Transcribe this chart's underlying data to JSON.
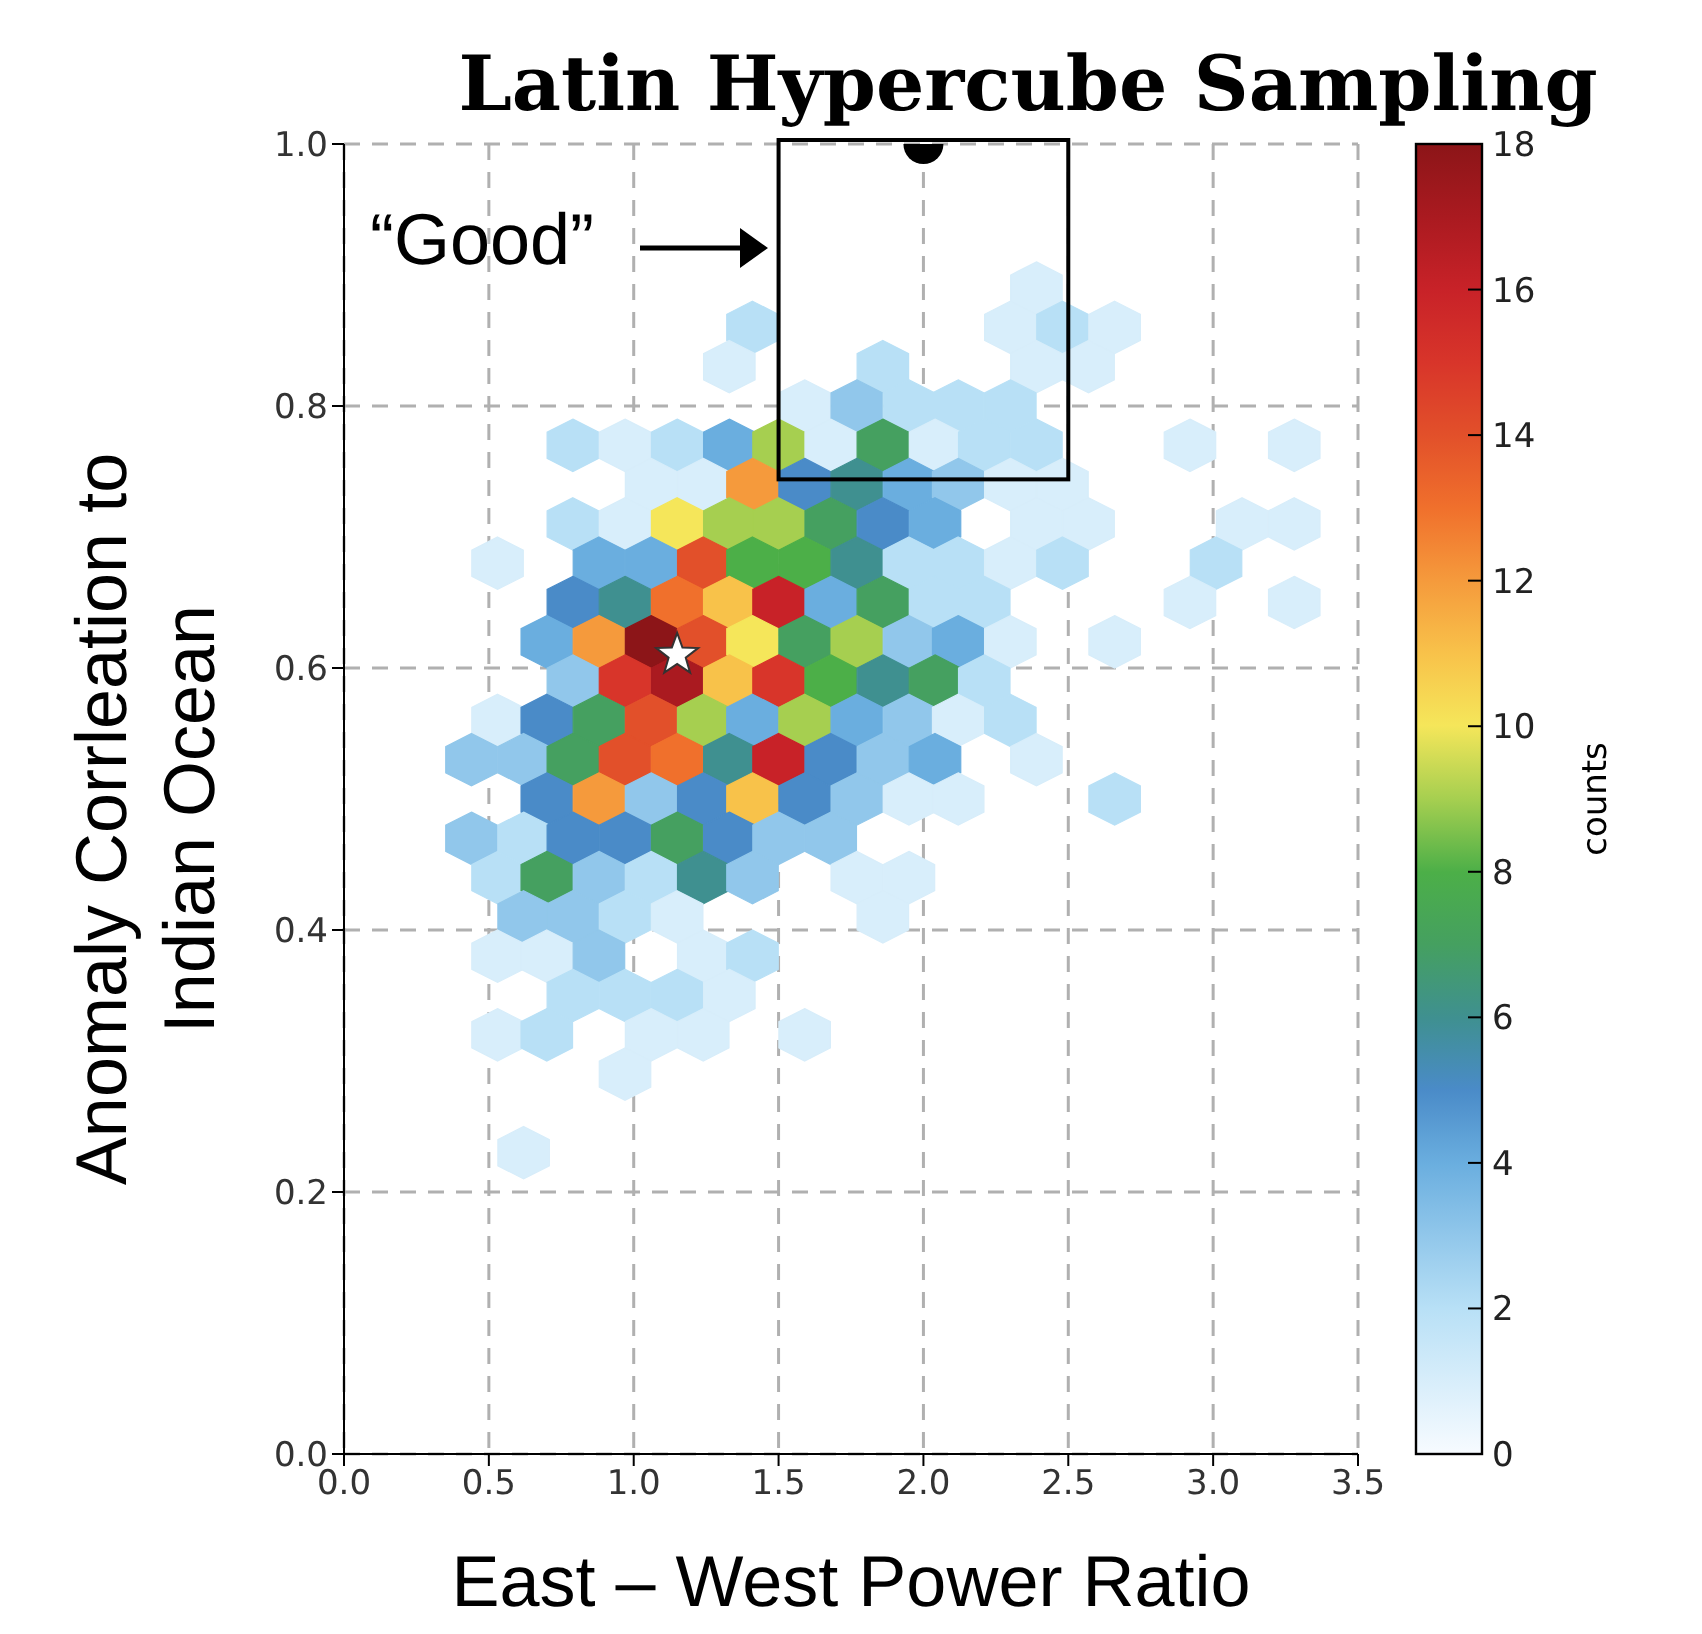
{
  "chart_data": {
    "type": "scatter",
    "title": "Latin Hypercube Sampling",
    "xlabel": "East – West Power Ratio",
    "ylabel": "Anomaly Corrleation to\nIndian Ocean",
    "clabel": "counts",
    "annotations": [
      "“Good”"
    ],
    "xlim": [
      0,
      3.5
    ],
    "xticks": [
      {
        "value": 0,
        "label": "0.0"
      },
      {
        "value": 0.5,
        "label": "0.5"
      },
      {
        "value": 1,
        "label": "1.0"
      },
      {
        "value": 1.5,
        "label": "1.5"
      },
      {
        "value": 2,
        "label": "2.0"
      },
      {
        "value": 2.5,
        "label": "2.5"
      },
      {
        "value": 3,
        "label": "3.0"
      },
      {
        "value": 3.5,
        "label": "3.5"
      }
    ],
    "ylim": [
      0,
      1
    ],
    "yticks": [
      {
        "value": 0,
        "label": "0.0"
      },
      {
        "value": 0.2,
        "label": "0.2"
      },
      {
        "value": 0.4,
        "label": "0.4"
      },
      {
        "value": 0.6,
        "label": "0.6"
      },
      {
        "value": 0.8,
        "label": "0.8"
      },
      {
        "value": 1,
        "label": "1.0"
      }
    ],
    "clim": [
      0,
      18
    ],
    "cticks": [
      0,
      2,
      4,
      6,
      8,
      10,
      12,
      14,
      16,
      18
    ],
    "grid": true,
    "series": [
      {
        "x": [
          2.39,
          1.41,
          2.3,
          2.48,
          2.66,
          1.33,
          1.86,
          2.39,
          2.57,
          1.59,
          1.77,
          1.95,
          2.12,
          2.3,
          0.79,
          0.97,
          1.15,
          1.33,
          1.5,
          1.68,
          1.86,
          2.04,
          2.21,
          2.39,
          2.92,
          3.28,
          1.06,
          1.24,
          1.41,
          1.59,
          1.77,
          1.95,
          2.12,
          2.3,
          2.48,
          0.79,
          0.97,
          1.15,
          1.33,
          1.5,
          1.68,
          1.86,
          2.04,
          2.39,
          2.57,
          3.1,
          3.28,
          0.53,
          0.88,
          1.06,
          1.24,
          1.41,
          1.59,
          1.77,
          1.95,
          2.12,
          2.3,
          2.48,
          3.01,
          0.79,
          0.97,
          1.15,
          1.33,
          1.5,
          1.68,
          1.86,
          2.04,
          2.21,
          2.92,
          3.28,
          0.7,
          0.88,
          1.06,
          1.24,
          1.41,
          1.59,
          1.77,
          1.95,
          2.12,
          2.3,
          2.66,
          0.79,
          0.97,
          1.15,
          1.33,
          1.5,
          1.68,
          1.86,
          2.04,
          2.21,
          0.53,
          0.7,
          0.88,
          1.06,
          1.24,
          1.41,
          1.59,
          1.77,
          1.95,
          2.12,
          2.3,
          0.44,
          0.62,
          0.79,
          0.97,
          1.15,
          1.33,
          1.5,
          1.68,
          1.86,
          2.04,
          2.39,
          0.7,
          0.88,
          1.06,
          1.24,
          1.41,
          1.59,
          1.77,
          1.95,
          2.12,
          2.66,
          0.44,
          0.62,
          0.79,
          0.97,
          1.15,
          1.33,
          1.5,
          1.68,
          0.53,
          0.7,
          0.88,
          1.06,
          1.24,
          1.41,
          1.77,
          1.95,
          0.62,
          0.79,
          0.97,
          1.15,
          1.86,
          0.53,
          0.7,
          0.88,
          1.24,
          1.41,
          0.79,
          0.97,
          1.15,
          1.33,
          0.53,
          0.7,
          1.06,
          1.24,
          1.59,
          0.97,
          0.62
        ],
        "values": [
          0.89,
          0.86,
          0.86,
          0.86,
          0.86,
          0.83,
          0.83,
          0.83,
          0.83,
          0.8,
          0.8,
          0.8,
          0.8,
          0.8,
          0.77,
          0.77,
          0.77,
          0.77,
          0.77,
          0.77,
          0.77,
          0.77,
          0.77,
          0.77,
          0.77,
          0.77,
          0.74,
          0.74,
          0.74,
          0.74,
          0.74,
          0.74,
          0.74,
          0.74,
          0.74,
          0.71,
          0.71,
          0.71,
          0.71,
          0.71,
          0.71,
          0.71,
          0.71,
          0.71,
          0.71,
          0.71,
          0.71,
          0.68,
          0.68,
          0.68,
          0.68,
          0.68,
          0.68,
          0.68,
          0.68,
          0.68,
          0.68,
          0.68,
          0.68,
          0.65,
          0.65,
          0.65,
          0.65,
          0.65,
          0.65,
          0.65,
          0.65,
          0.65,
          0.65,
          0.65,
          0.62,
          0.62,
          0.62,
          0.62,
          0.62,
          0.62,
          0.62,
          0.62,
          0.62,
          0.62,
          0.62,
          0.59,
          0.59,
          0.59,
          0.59,
          0.59,
          0.59,
          0.59,
          0.59,
          0.59,
          0.56,
          0.56,
          0.56,
          0.56,
          0.56,
          0.56,
          0.56,
          0.56,
          0.56,
          0.56,
          0.56,
          0.53,
          0.53,
          0.53,
          0.53,
          0.53,
          0.53,
          0.53,
          0.53,
          0.53,
          0.53,
          0.53,
          0.5,
          0.5,
          0.5,
          0.5,
          0.5,
          0.5,
          0.5,
          0.5,
          0.5,
          0.5,
          0.47,
          0.47,
          0.47,
          0.47,
          0.47,
          0.47,
          0.47,
          0.47,
          0.44,
          0.44,
          0.44,
          0.44,
          0.44,
          0.44,
          0.44,
          0.44,
          0.41,
          0.41,
          0.41,
          0.41,
          0.41,
          0.38,
          0.38,
          0.38,
          0.38,
          0.38,
          0.35,
          0.35,
          0.35,
          0.35,
          0.32,
          0.32,
          0.32,
          0.32,
          0.32,
          0.29,
          0.23
        ],
        "cvalues": [
          1,
          2,
          1,
          2,
          1,
          1,
          2,
          1,
          1,
          1,
          3,
          2,
          2,
          2,
          2,
          1,
          2,
          4,
          9,
          1,
          7,
          1,
          2,
          2,
          1,
          1,
          1,
          1,
          12,
          5,
          6,
          4,
          3,
          1,
          1,
          2,
          1,
          10,
          9,
          9,
          7,
          5,
          4,
          1,
          1,
          1,
          1,
          1,
          4,
          4,
          14,
          8,
          8,
          6,
          2,
          2,
          1,
          2,
          2,
          5,
          6,
          13,
          11,
          16,
          4,
          7,
          2,
          2,
          1,
          1,
          4,
          12,
          18,
          14,
          10,
          7,
          9,
          3,
          4,
          1,
          1,
          3,
          15,
          17,
          11,
          15,
          8,
          6,
          7,
          2,
          1,
          5,
          7,
          14,
          9,
          4,
          9,
          4,
          3,
          1,
          2,
          3,
          3,
          7,
          14,
          13,
          6,
          16,
          5,
          3,
          4,
          1,
          5,
          12,
          3,
          5,
          11,
          5,
          3,
          1,
          1,
          2,
          3,
          2,
          5,
          5,
          7,
          5,
          3,
          3,
          2,
          7,
          3,
          2,
          6,
          3,
          1,
          1,
          3,
          3,
          2,
          1,
          1,
          1,
          1,
          3,
          1,
          2,
          2,
          2,
          2,
          1,
          1,
          2,
          1,
          1,
          1,
          1,
          1
        ],
        "colors": [
          "#d8eefb",
          "#b8e0f6",
          "#d8eefb",
          "#b8e0f6",
          "#d8eefb",
          "#d8eefb",
          "#b8e0f6",
          "#d8eefb",
          "#d8eefb",
          "#d8eefb",
          "#91c7eb",
          "#b8e0f6",
          "#b8e0f6",
          "#b8e0f6",
          "#b8e0f6",
          "#d8eefb",
          "#b8e0f6",
          "#6aaedf",
          "#a6cf50",
          "#d8eefb",
          "#45a060",
          "#d8eefb",
          "#b8e0f6",
          "#b8e0f6",
          "#d8eefb",
          "#d8eefb",
          "#d8eefb",
          "#d8eefb",
          "#f59a3c",
          "#4a8bc8",
          "#3f9090",
          "#6aaedf",
          "#91c7eb",
          "#d8eefb",
          "#d8eefb",
          "#b8e0f6",
          "#d8eefb",
          "#f5e65a",
          "#a6cf50",
          "#a6cf50",
          "#45a060",
          "#4a8bc8",
          "#6aaedf",
          "#d8eefb",
          "#d8eefb",
          "#d8eefb",
          "#d8eefb",
          "#d8eefb",
          "#6aaedf",
          "#6aaedf",
          "#e2502a",
          "#4caf48",
          "#4caf48",
          "#3f9090",
          "#b8e0f6",
          "#b8e0f6",
          "#d8eefb",
          "#b8e0f6",
          "#b8e0f6",
          "#4a8bc8",
          "#3f9090",
          "#f0702c",
          "#f8c24a",
          "#c82228",
          "#6aaedf",
          "#45a060",
          "#b8e0f6",
          "#b8e0f6",
          "#d8eefb",
          "#d8eefb",
          "#6aaedf",
          "#f59a3c",
          "#8c1518",
          "#e2502a",
          "#f5e65a",
          "#45a060",
          "#a6cf50",
          "#91c7eb",
          "#6aaedf",
          "#d8eefb",
          "#d8eefb",
          "#91c7eb",
          "#d8352a",
          "#aa1a20",
          "#f8c24a",
          "#d8352a",
          "#4caf48",
          "#3f9090",
          "#45a060",
          "#b8e0f6",
          "#d8eefb",
          "#4a8bc8",
          "#45a060",
          "#e2502a",
          "#a6cf50",
          "#6aaedf",
          "#a6cf50",
          "#6aaedf",
          "#91c7eb",
          "#d8eefb",
          "#b8e0f6",
          "#91c7eb",
          "#91c7eb",
          "#45a060",
          "#e2502a",
          "#f0702c",
          "#3f9090",
          "#c82228",
          "#4a8bc8",
          "#91c7eb",
          "#6aaedf",
          "#d8eefb",
          "#4a8bc8",
          "#f59a3c",
          "#91c7eb",
          "#4a8bc8",
          "#f8c24a",
          "#4a8bc8",
          "#91c7eb",
          "#d8eefb",
          "#d8eefb",
          "#b8e0f6",
          "#91c7eb",
          "#b8e0f6",
          "#4a8bc8",
          "#4a8bc8",
          "#45a060",
          "#4a8bc8",
          "#91c7eb",
          "#91c7eb",
          "#b8e0f6",
          "#45a060",
          "#91c7eb",
          "#b8e0f6",
          "#3f9090",
          "#91c7eb",
          "#d8eefb",
          "#d8eefb",
          "#91c7eb",
          "#91c7eb",
          "#b8e0f6",
          "#d8eefb",
          "#d8eefb",
          "#d8eefb",
          "#d8eefb",
          "#91c7eb",
          "#d8eefb",
          "#b8e0f6",
          "#b8e0f6",
          "#b8e0f6",
          "#b8e0f6",
          "#d8eefb",
          "#d8eefb",
          "#b8e0f6",
          "#d8eefb",
          "#d8eefb",
          "#d8eefb",
          "#d8eefb",
          "#d8eefb"
        ]
      },
      {
        "marker": "star",
        "color": "#ffffff",
        "x": [
          1.15
        ],
        "values": [
          0.61
        ]
      },
      {
        "marker": "circle",
        "color": "#000000",
        "x": [
          2.0
        ],
        "values": [
          1.0
        ]
      }
    ]
  }
}
